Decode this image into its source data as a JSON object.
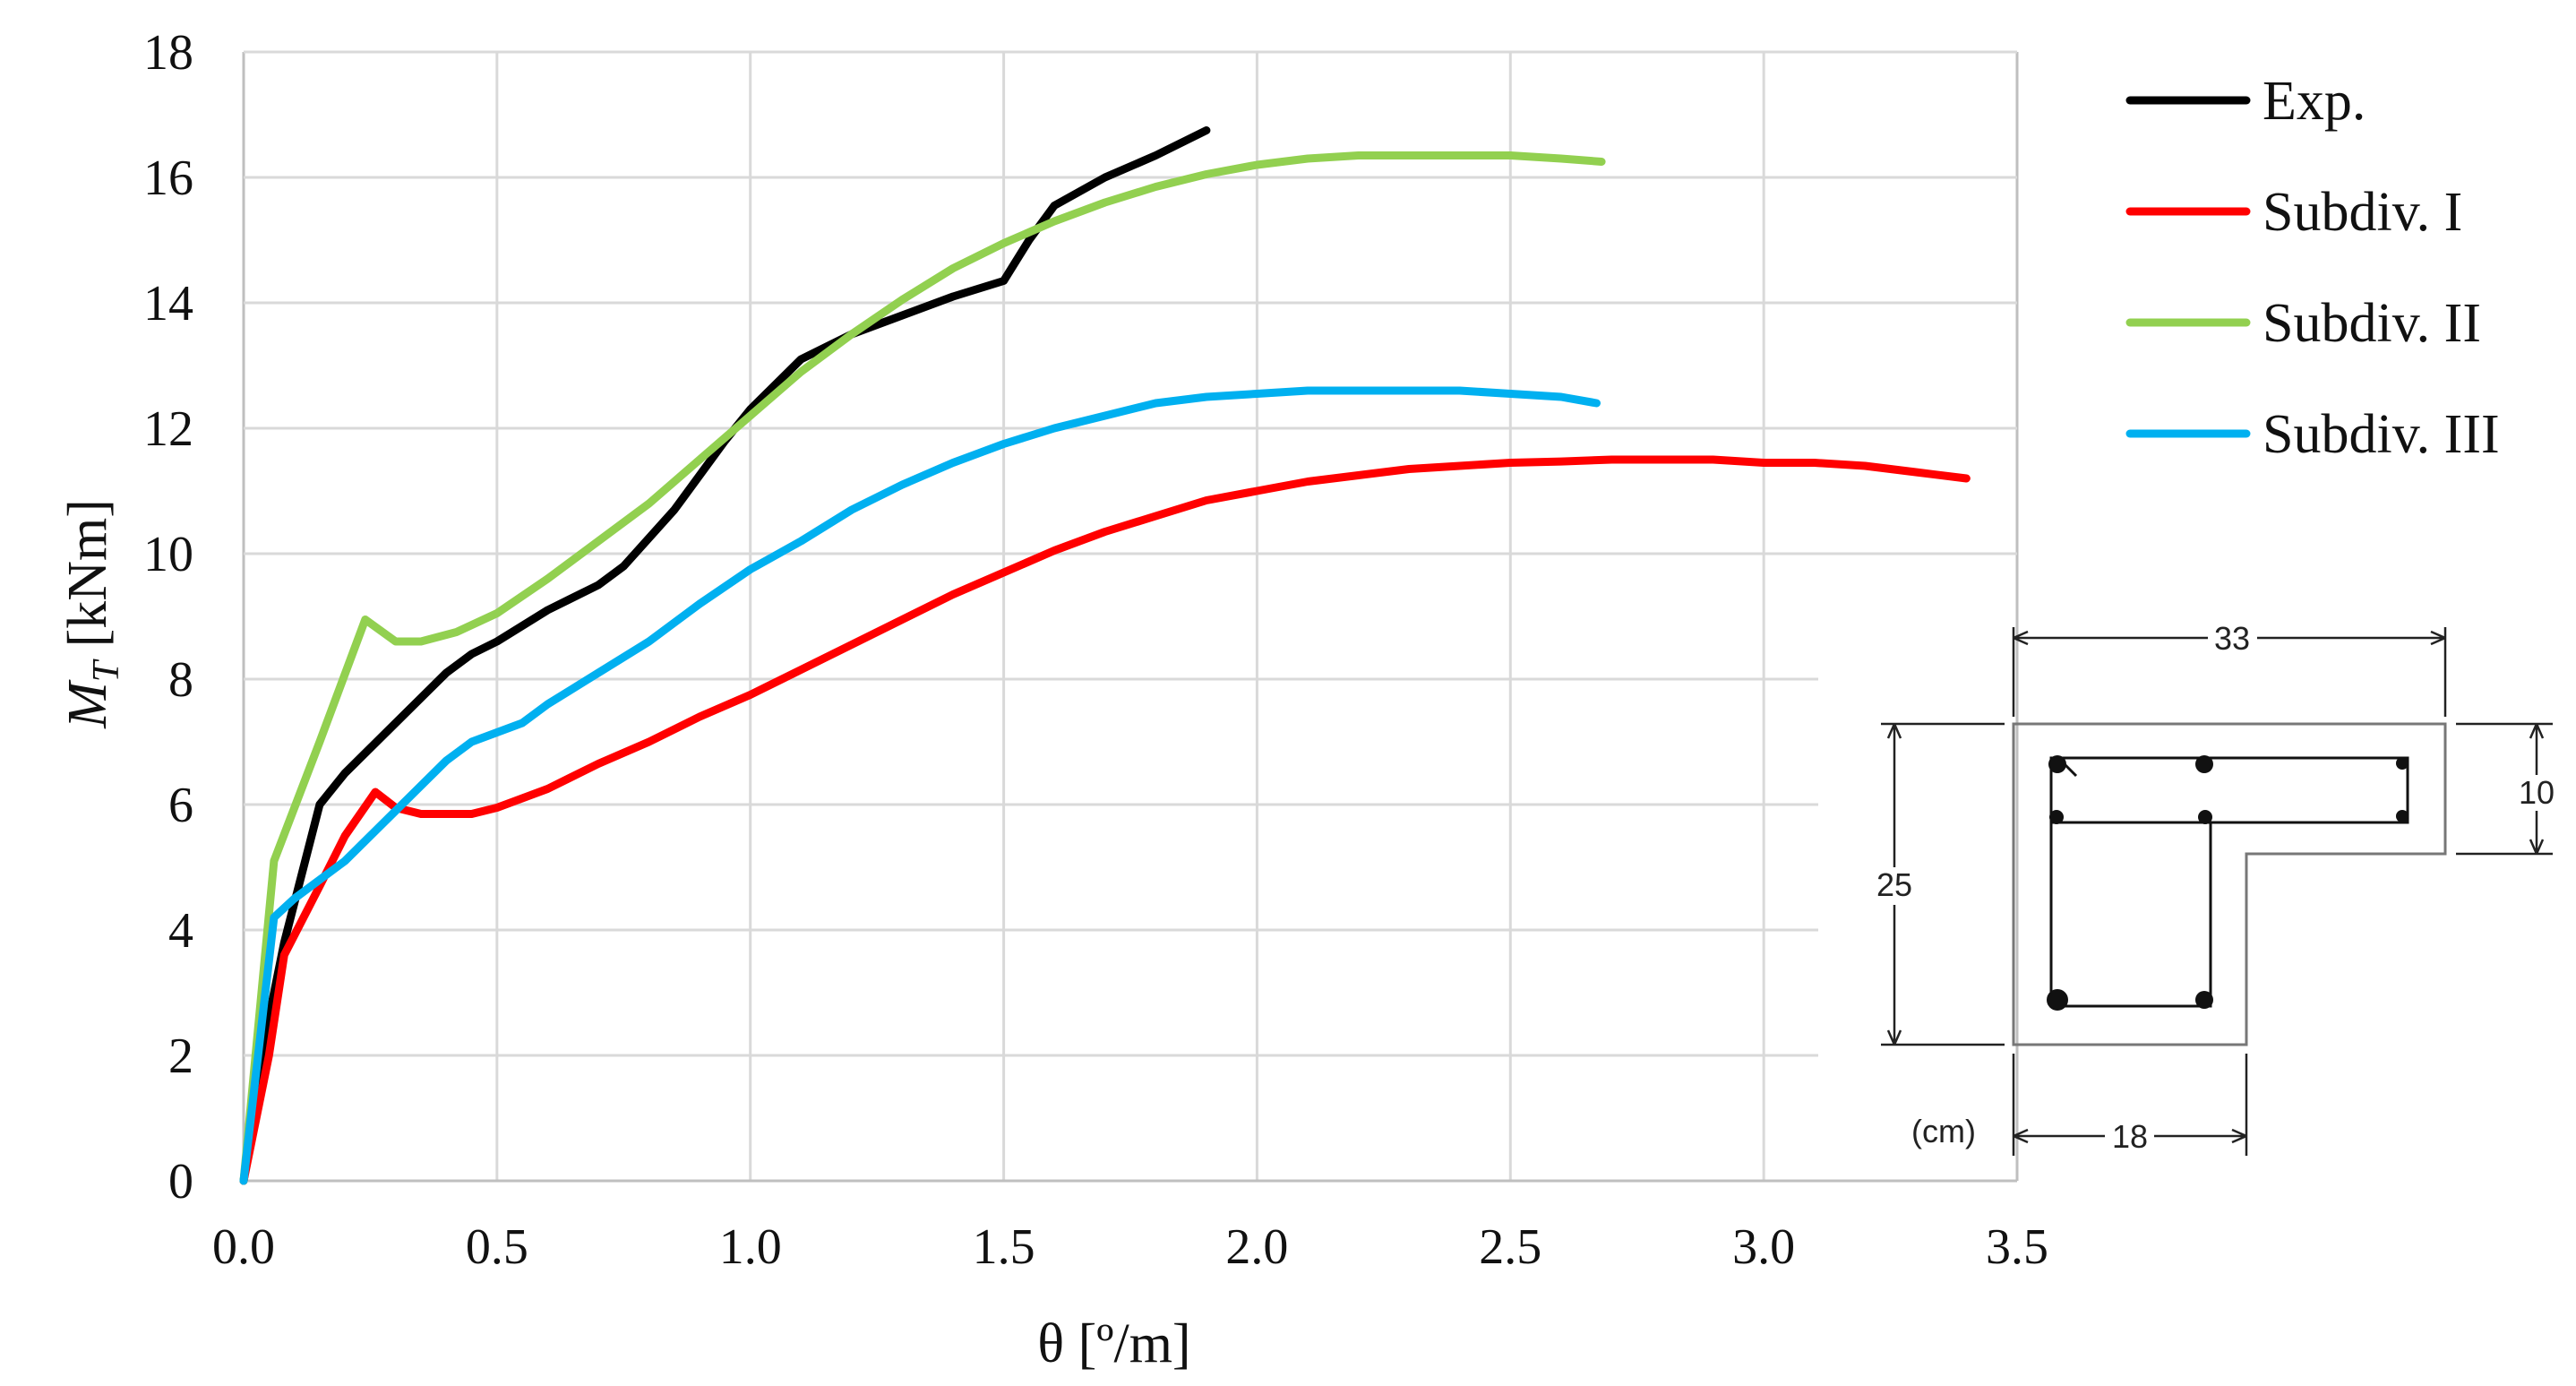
{
  "chart_data": {
    "type": "line",
    "xlabel": "θ [º/m]",
    "ylabel_main": "M",
    "ylabel_sub": "T",
    "ylabel_unit": " [kNm]",
    "xlim": [
      0,
      3.5
    ],
    "ylim": [
      0,
      18
    ],
    "x_ticks": [
      "0.0",
      "0.5",
      "1.0",
      "1.5",
      "2.0",
      "2.5",
      "3.0",
      "3.5"
    ],
    "y_ticks": [
      "0",
      "2",
      "4",
      "6",
      "8",
      "10",
      "12",
      "14",
      "16",
      "18"
    ],
    "grid": true,
    "legend_position": "top-right",
    "series": [
      {
        "name": "Exp.",
        "color": "#000000",
        "points": [
          [
            0,
            0
          ],
          [
            0.04,
            2.2
          ],
          [
            0.08,
            3.8
          ],
          [
            0.15,
            6.0
          ],
          [
            0.2,
            6.5
          ],
          [
            0.3,
            7.3
          ],
          [
            0.4,
            8.1
          ],
          [
            0.45,
            8.4
          ],
          [
            0.5,
            8.6
          ],
          [
            0.6,
            9.1
          ],
          [
            0.7,
            9.5
          ],
          [
            0.75,
            9.8
          ],
          [
            0.85,
            10.7
          ],
          [
            0.95,
            11.8
          ],
          [
            1.0,
            12.3
          ],
          [
            1.1,
            13.1
          ],
          [
            1.2,
            13.5
          ],
          [
            1.3,
            13.8
          ],
          [
            1.4,
            14.1
          ],
          [
            1.5,
            14.35
          ],
          [
            1.55,
            15.0
          ],
          [
            1.6,
            15.55
          ],
          [
            1.7,
            16.0
          ],
          [
            1.8,
            16.35
          ],
          [
            1.9,
            16.75
          ]
        ]
      },
      {
        "name": "Subdiv. I",
        "color": "#ff0000",
        "points": [
          [
            0,
            0
          ],
          [
            0.05,
            2.0
          ],
          [
            0.08,
            3.6
          ],
          [
            0.15,
            4.7
          ],
          [
            0.2,
            5.5
          ],
          [
            0.26,
            6.2
          ],
          [
            0.3,
            5.95
          ],
          [
            0.35,
            5.85
          ],
          [
            0.45,
            5.85
          ],
          [
            0.5,
            5.95
          ],
          [
            0.6,
            6.25
          ],
          [
            0.7,
            6.65
          ],
          [
            0.8,
            7.0
          ],
          [
            0.9,
            7.4
          ],
          [
            1.0,
            7.75
          ],
          [
            1.1,
            8.15
          ],
          [
            1.2,
            8.55
          ],
          [
            1.3,
            8.95
          ],
          [
            1.4,
            9.35
          ],
          [
            1.5,
            9.7
          ],
          [
            1.6,
            10.05
          ],
          [
            1.7,
            10.35
          ],
          [
            1.8,
            10.6
          ],
          [
            1.9,
            10.85
          ],
          [
            2.0,
            11.0
          ],
          [
            2.1,
            11.15
          ],
          [
            2.2,
            11.25
          ],
          [
            2.3,
            11.35
          ],
          [
            2.4,
            11.4
          ],
          [
            2.5,
            11.45
          ],
          [
            2.6,
            11.47
          ],
          [
            2.7,
            11.5
          ],
          [
            2.8,
            11.5
          ],
          [
            2.9,
            11.5
          ],
          [
            3.0,
            11.45
          ],
          [
            3.1,
            11.45
          ],
          [
            3.2,
            11.4
          ],
          [
            3.3,
            11.3
          ],
          [
            3.4,
            11.2
          ]
        ]
      },
      {
        "name": "Subdiv. II",
        "color": "#92d050",
        "points": [
          [
            0,
            0
          ],
          [
            0.06,
            5.1
          ],
          [
            0.15,
            7.0
          ],
          [
            0.24,
            8.95
          ],
          [
            0.3,
            8.6
          ],
          [
            0.35,
            8.6
          ],
          [
            0.42,
            8.75
          ],
          [
            0.5,
            9.05
          ],
          [
            0.6,
            9.6
          ],
          [
            0.7,
            10.2
          ],
          [
            0.8,
            10.8
          ],
          [
            0.9,
            11.5
          ],
          [
            1.0,
            12.2
          ],
          [
            1.1,
            12.9
          ],
          [
            1.2,
            13.5
          ],
          [
            1.3,
            14.05
          ],
          [
            1.4,
            14.55
          ],
          [
            1.5,
            14.95
          ],
          [
            1.6,
            15.3
          ],
          [
            1.7,
            15.6
          ],
          [
            1.8,
            15.85
          ],
          [
            1.9,
            16.05
          ],
          [
            2.0,
            16.2
          ],
          [
            2.1,
            16.3
          ],
          [
            2.2,
            16.35
          ],
          [
            2.3,
            16.35
          ],
          [
            2.4,
            16.35
          ],
          [
            2.5,
            16.35
          ],
          [
            2.6,
            16.3
          ],
          [
            2.68,
            16.25
          ]
        ]
      },
      {
        "name": "Subdiv. III",
        "color": "#00b0f0",
        "points": [
          [
            0,
            0
          ],
          [
            0.06,
            4.2
          ],
          [
            0.1,
            4.5
          ],
          [
            0.2,
            5.1
          ],
          [
            0.3,
            5.9
          ],
          [
            0.4,
            6.7
          ],
          [
            0.45,
            7.0
          ],
          [
            0.55,
            7.3
          ],
          [
            0.6,
            7.6
          ],
          [
            0.7,
            8.1
          ],
          [
            0.8,
            8.6
          ],
          [
            0.9,
            9.2
          ],
          [
            1.0,
            9.75
          ],
          [
            1.1,
            10.2
          ],
          [
            1.2,
            10.7
          ],
          [
            1.3,
            11.1
          ],
          [
            1.4,
            11.45
          ],
          [
            1.5,
            11.75
          ],
          [
            1.6,
            12.0
          ],
          [
            1.7,
            12.2
          ],
          [
            1.8,
            12.4
          ],
          [
            1.9,
            12.5
          ],
          [
            2.0,
            12.55
          ],
          [
            2.1,
            12.6
          ],
          [
            2.2,
            12.6
          ],
          [
            2.3,
            12.6
          ],
          [
            2.4,
            12.6
          ],
          [
            2.5,
            12.55
          ],
          [
            2.6,
            12.5
          ],
          [
            2.67,
            12.4
          ]
        ]
      }
    ]
  },
  "cross_section": {
    "dim_top": "33",
    "dim_right": "10",
    "dim_left": "25",
    "dim_bottom": "18",
    "units": "(cm)"
  }
}
